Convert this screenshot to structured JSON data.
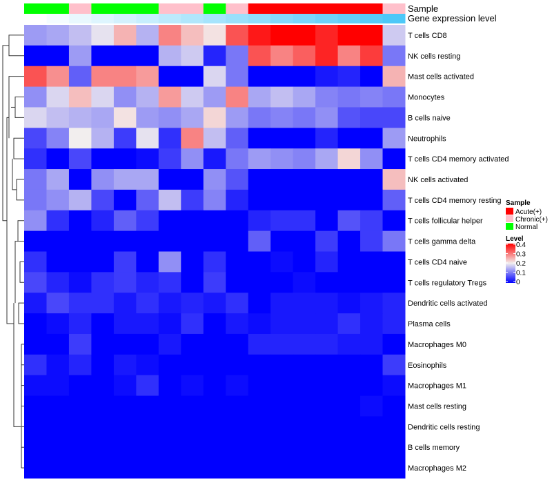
{
  "chart_data": {
    "type": "heatmap",
    "title": "",
    "annotation_rows": [
      "Sample",
      "Gene expression level"
    ],
    "sample_groups": [
      "Normal",
      "Normal",
      "Chronic(+)",
      "Normal",
      "Normal",
      "Normal",
      "Chronic(+)",
      "Chronic(+)",
      "Normal",
      "Chronic(+)",
      "Acute(+)",
      "Acute(+)",
      "Acute(+)",
      "Acute(+)",
      "Acute(+)",
      "Acute(+)",
      "Chronic(+)"
    ],
    "gene_expression_rank": [
      0,
      1,
      2,
      3,
      4,
      5,
      6,
      7,
      8,
      9,
      10,
      11,
      12,
      13,
      14,
      15,
      16
    ],
    "rows": [
      "T cells CD8",
      "NK cells resting",
      "Mast cells activated",
      "Monocytes",
      "B cells naive",
      "Neutrophils",
      "T cells CD4 memory activated",
      "NK cells activated",
      "T cells CD4 memory resting",
      "T cells follicular helper",
      "T cells gamma delta",
      "T cells CD4 naive",
      "T cells regulatory  Tregs",
      "Dendritic cells activated",
      "Plasma cells",
      "Macrophages M0",
      "Eosinophils",
      "Macrophages M1",
      "Mast cells resting",
      "Dendritic cells resting",
      "B cells memory",
      "Macrophages M2"
    ],
    "values": [
      [
        0.13,
        0.14,
        0.16,
        0.19,
        0.25,
        0.15,
        0.29,
        0.24,
        0.21,
        0.33,
        0.38,
        0.4,
        0.4,
        0.37,
        0.4,
        0.4,
        0.17
      ],
      [
        0,
        0,
        0.13,
        0,
        0,
        0,
        0.15,
        0.17,
        0.03,
        0.1,
        0.33,
        0.29,
        0.32,
        0.37,
        0.29,
        0.35,
        0.1
      ],
      [
        0.33,
        0.28,
        0.08,
        0.29,
        0.29,
        0.27,
        0,
        0,
        0.18,
        0.1,
        0,
        0,
        0,
        0.02,
        0.03,
        0,
        0.25
      ],
      [
        0.12,
        0.18,
        0.24,
        0.18,
        0.12,
        0.15,
        0.27,
        0.17,
        0.13,
        0.29,
        0.14,
        0.16,
        0.14,
        0.11,
        0.1,
        0.11,
        0.1
      ],
      [
        0.18,
        0.16,
        0.15,
        0.14,
        0.21,
        0.13,
        0.12,
        0.14,
        0.22,
        0.13,
        0.1,
        0.11,
        0.1,
        0.12,
        0.07,
        0.06,
        0.06
      ],
      [
        0.06,
        0.11,
        0.2,
        0.15,
        0.05,
        0.19,
        0.04,
        0.29,
        0.16,
        0.08,
        0,
        0,
        0,
        0.03,
        0,
        0,
        0.13
      ],
      [
        0.04,
        0,
        0.06,
        0,
        0,
        0.01,
        0.05,
        0.12,
        0.02,
        0.1,
        0.13,
        0.12,
        0.11,
        0.14,
        0.22,
        0.12,
        0
      ],
      [
        0.1,
        0.14,
        0,
        0.12,
        0.14,
        0.14,
        0,
        0,
        0.12,
        0.07,
        0,
        0,
        0,
        0,
        0,
        0,
        0.24
      ],
      [
        0.1,
        0.12,
        0.15,
        0.06,
        0,
        0.08,
        0.16,
        0.05,
        0.11,
        0.03,
        0,
        0,
        0,
        0,
        0,
        0,
        0.08
      ],
      [
        0.12,
        0.04,
        0,
        0.03,
        0.08,
        0.05,
        0,
        0,
        0,
        0,
        0.03,
        0.04,
        0.04,
        0,
        0.07,
        0.05,
        0
      ],
      [
        0,
        0,
        0,
        0,
        0,
        0,
        0,
        0,
        0,
        0,
        0.08,
        0,
        0,
        0.05,
        0,
        0.05,
        0.1
      ],
      [
        0.04,
        0,
        0,
        0,
        0.05,
        0,
        0.12,
        0,
        0.04,
        0,
        0,
        0.01,
        0,
        0.03,
        0,
        0,
        0
      ],
      [
        0.06,
        0.03,
        0.01,
        0.04,
        0.05,
        0.03,
        0.04,
        0,
        0.05,
        0,
        0,
        0,
        0.01,
        0,
        0,
        0,
        0
      ],
      [
        0.02,
        0.06,
        0.04,
        0.04,
        0.02,
        0.04,
        0.02,
        0.03,
        0.02,
        0.04,
        0,
        0.02,
        0.02,
        0.02,
        0.01,
        0.02,
        0.03
      ],
      [
        0,
        0.01,
        0.03,
        0,
        0.02,
        0.02,
        0.01,
        0.04,
        0,
        0.02,
        0.01,
        0.02,
        0.02,
        0.02,
        0.04,
        0.02,
        0.03
      ],
      [
        0,
        0,
        0.05,
        0,
        0,
        0,
        0.02,
        0,
        0,
        0,
        0.03,
        0.03,
        0.03,
        0.03,
        0.02,
        0.02,
        0
      ],
      [
        0.04,
        0.01,
        0.03,
        0,
        0.02,
        0.01,
        0,
        0,
        0,
        0,
        0,
        0,
        0,
        0,
        0,
        0,
        0.05
      ],
      [
        0.01,
        0.01,
        0,
        0,
        0.01,
        0.04,
        0,
        0.01,
        0,
        0.01,
        0,
        0,
        0,
        0,
        0,
        0,
        0.01
      ],
      [
        0,
        0,
        0,
        0,
        0,
        0,
        0,
        0,
        0,
        0,
        0,
        0,
        0,
        0,
        0,
        0.01,
        0
      ],
      [
        0,
        0,
        0,
        0,
        0,
        0,
        0,
        0,
        0,
        0,
        0,
        0,
        0,
        0,
        0,
        0,
        0
      ],
      [
        0,
        0,
        0,
        0,
        0,
        0,
        0,
        0,
        0,
        0,
        0,
        0,
        0,
        0,
        0,
        0,
        0
      ],
      [
        0,
        0,
        0,
        0,
        0,
        0,
        0,
        0,
        0,
        0,
        0,
        0,
        0,
        0,
        0,
        0,
        0
      ]
    ],
    "color_range": [
      0,
      0.4
    ],
    "colors": {
      "low": "#0000ff",
      "mid": "#f2eeee",
      "high": "#ff0000",
      "gene_low": "#ffffff",
      "gene_high": "#4dc8f8"
    },
    "legend": {
      "position": "right",
      "sample_title": "Sample",
      "sample_items": [
        {
          "label": "Acute(+)",
          "color": "#ff0000"
        },
        {
          "label": "Chronic(+)",
          "color": "#ffc0cb"
        },
        {
          "label": "Normal",
          "color": "#00ff00"
        }
      ],
      "level_title": "Level",
      "level_ticks": [
        "0.4",
        "0.3",
        "0.2",
        "0.1",
        "0"
      ]
    }
  }
}
